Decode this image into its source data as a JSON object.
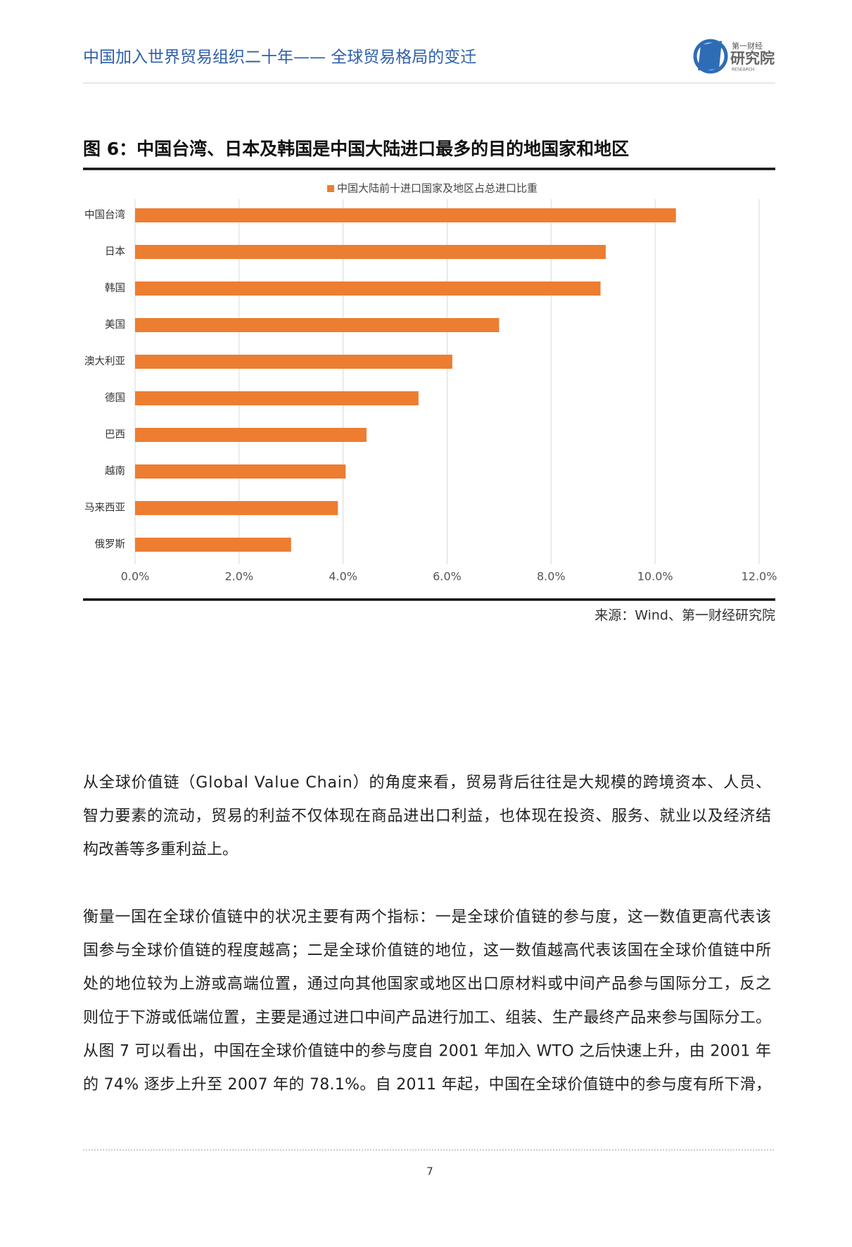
{
  "header": {
    "title": "中国加入世界贸易组织二十年—— 全球贸易格局的变迁",
    "logo_top": "第一财经",
    "logo_main": "研究院",
    "logo_sub": "RESEARCH"
  },
  "figure_title": "图 6：中国台湾、日本及韩国是中国大陆进口最多的目的地国家和地区",
  "chart_data": {
    "type": "bar",
    "orientation": "horizontal",
    "categories": [
      "中国台湾",
      "日本",
      "韩国",
      "美国",
      "澳大利亚",
      "德国",
      "巴西",
      "越南",
      "马来西亚",
      "俄罗斯"
    ],
    "series": [
      {
        "name": "中国大陆前十进口国家及地区占总进口比重",
        "color": "#ed7d31",
        "values": [
          10.4,
          9.05,
          8.95,
          7.0,
          6.1,
          5.45,
          4.45,
          4.05,
          3.9,
          3.0
        ]
      }
    ],
    "xlim": [
      0,
      12
    ],
    "xticks": [
      {
        "value": 0,
        "label": "0.0%"
      },
      {
        "value": 2,
        "label": "2.0%"
      },
      {
        "value": 4,
        "label": "4.0%"
      },
      {
        "value": 6,
        "label": "6.0%"
      },
      {
        "value": 8,
        "label": "8.0%"
      },
      {
        "value": 10,
        "label": "10.0%"
      },
      {
        "value": 12,
        "label": "12.0%"
      }
    ],
    "grid": true,
    "legend": "top"
  },
  "source": "来源：Wind、第一财经研究院",
  "paragraphs": [
    [
      "从全球价值链（Global Value Chain）的角度来看，贸易背后往往是大规模的跨境资本、人员、",
      "智力要素的流动，贸易的利益不仅体现在商品进出口利益，也体现在投资、服务、就业以及经济结",
      "构改善等多重利益上。"
    ],
    [
      "衡量一国在全球价值链中的状况主要有两个指标：一是全球价值链的参与度，这一数值更高代表该",
      "国参与全球价值链的程度越高；二是全球价值链的地位，这一数值越高代表该国在全球价值链中所",
      "处的地位较为上游或高端位置，通过向其他国家或地区出口原材料或中间产品参与国际分工，反之",
      "则位于下游或低端位置，主要是通过进口中间产品进行加工、组装、生产最终产品来参与国际分工。",
      "从图 7 可以看出，中国在全球价值链中的参与度自 2001 年加入 WTO 之后快速上升，由 2001 年",
      "的 74% 逐步上升至 2007 年的 78.1%。自 2011 年起，中国在全球价值链中的参与度有所下滑，"
    ]
  ],
  "page_number": "7"
}
